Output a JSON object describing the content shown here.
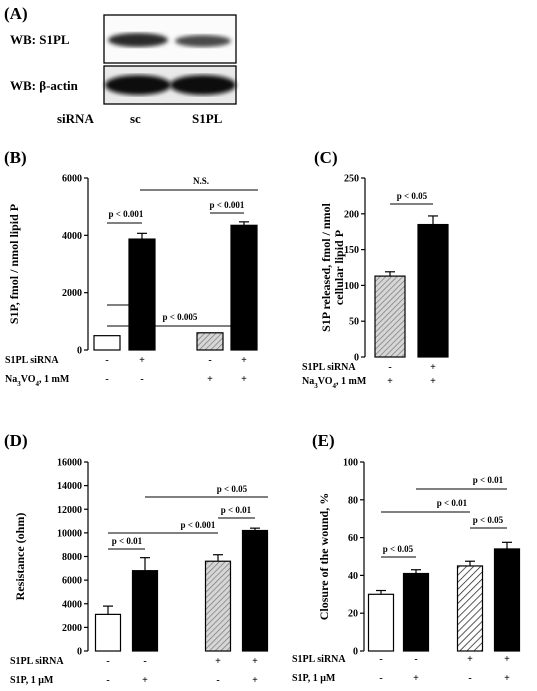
{
  "panel_a": {
    "label": "(A)",
    "blot_labels": [
      "WB: S1PL",
      "WB: β-actin"
    ],
    "lane_row_label": "siRNA",
    "lanes": [
      "sc",
      "S1PL"
    ]
  },
  "chart_data": [
    {
      "id": "B",
      "type": "bar",
      "panel_label": "(B)",
      "ylabel": "S1P, fmol / nmol lipid P",
      "ylim": [
        0,
        6000
      ],
      "yticks": [
        0,
        2000,
        4000,
        6000
      ],
      "values": [
        500,
        3870,
        600,
        4350
      ],
      "errors": [
        0,
        200,
        0,
        120
      ],
      "fills": [
        "white",
        "black",
        "hatch-gray",
        "black"
      ],
      "row_labels": [
        "S1PL siRNA",
        "Na3VO4, 1 mM"
      ],
      "rows": [
        [
          "-",
          "+",
          "-",
          "+"
        ],
        [
          "-",
          "-",
          "+",
          "+"
        ]
      ],
      "annotations": [
        "p < 0.001",
        "N.S.",
        "p < 0.001",
        "p < 0.005"
      ]
    },
    {
      "id": "C",
      "type": "bar",
      "panel_label": "(C)",
      "ylabel": [
        "S1P released, fmol / nmol",
        "cellular lipid P"
      ],
      "ylim": [
        0,
        250
      ],
      "yticks": [
        0,
        50,
        100,
        150,
        200,
        250
      ],
      "values": [
        113,
        185
      ],
      "errors": [
        6,
        12
      ],
      "fills": [
        "hatch-gray",
        "black"
      ],
      "row_labels": [
        "S1PL siRNA",
        "Na3VO4, 1 mM"
      ],
      "rows": [
        [
          "-",
          "+"
        ],
        [
          "+",
          "+"
        ]
      ],
      "annotations": [
        "p < 0.05"
      ]
    },
    {
      "id": "D",
      "type": "bar",
      "panel_label": "(D)",
      "ylabel": "Resistance (ohm)",
      "ylim": [
        0,
        16000
      ],
      "yticks": [
        0,
        2000,
        4000,
        6000,
        8000,
        10000,
        12000,
        14000,
        16000
      ],
      "values": [
        3100,
        6800,
        7600,
        10200
      ],
      "errors": [
        700,
        1100,
        550,
        200
      ],
      "fills": [
        "white",
        "black",
        "hatch-gray",
        "black"
      ],
      "row_labels": [
        "S1PL siRNA",
        "S1P, 1 μM"
      ],
      "rows": [
        [
          "-",
          "-",
          "+",
          "+"
        ],
        [
          "-",
          "+",
          "-",
          "+"
        ]
      ],
      "annotations": [
        "p < 0.01",
        "p < 0.05",
        "p < 0.001",
        "p < 0.01"
      ]
    },
    {
      "id": "E",
      "type": "bar",
      "panel_label": "(E)",
      "ylabel": "Closure of the wound, %",
      "ylim": [
        0,
        100
      ],
      "yticks": [
        0,
        20,
        40,
        60,
        80,
        100
      ],
      "values": [
        30,
        41,
        45,
        54
      ],
      "errors": [
        2,
        2,
        2.5,
        3.5
      ],
      "fills": [
        "white",
        "black",
        "hatch-diag",
        "black"
      ],
      "row_labels": [
        "S1PL siRNA",
        "S1P, 1 μM"
      ],
      "rows": [
        [
          "-",
          "-",
          "+",
          "+"
        ],
        [
          "-",
          "+",
          "-",
          "+"
        ]
      ],
      "annotations": [
        "p < 0.05",
        "p < 0.01",
        "p < 0.01",
        "p < 0.05"
      ]
    }
  ]
}
